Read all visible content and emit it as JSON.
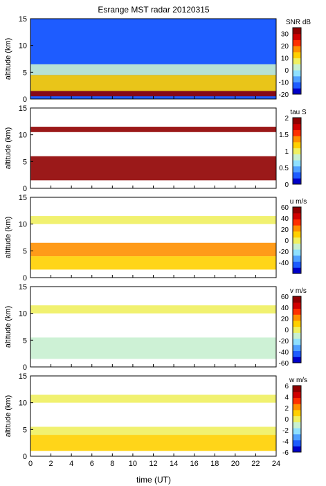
{
  "chart_data": {
    "type": "heatmap",
    "title": "Esrange MST radar 20120315",
    "xlabel": "time (UT)",
    "xlim": [
      0,
      24
    ],
    "xticks": [
      0,
      2,
      4,
      6,
      8,
      10,
      12,
      14,
      16,
      18,
      20,
      22,
      24
    ],
    "grid": false,
    "panels": [
      {
        "ylabel": "altitude (km)",
        "ylim": [
          0,
          15
        ],
        "yticks": [
          0,
          5,
          10,
          15
        ],
        "colorbar": {
          "label": "SNR dB",
          "range": [
            -20,
            35
          ],
          "ticks": [
            -20,
            -10,
            0,
            10,
            20,
            30
          ]
        },
        "bands": [
          {
            "alt_min": 0.5,
            "alt_max": 1.5,
            "value": 30
          },
          {
            "alt_min": 1.5,
            "alt_max": 4.5,
            "value": 12
          },
          {
            "alt_min": 4.5,
            "alt_max": 6.5,
            "value": 0
          },
          {
            "alt_min": 6.5,
            "alt_max": 15,
            "value": -12
          }
        ]
      },
      {
        "ylabel": "altitude (km)",
        "ylim": [
          0,
          15
        ],
        "yticks": [
          0,
          5,
          10,
          15
        ],
        "colorbar": {
          "label": "tau S",
          "range": [
            0,
            2
          ],
          "ticks": [
            0,
            0.5,
            1,
            1.5,
            2
          ]
        },
        "bands": [
          {
            "alt_min": 1.5,
            "alt_max": 6,
            "value": 1.95
          },
          {
            "alt_min": 10.5,
            "alt_max": 11.5,
            "value": 1.9
          }
        ]
      },
      {
        "ylabel": "altitude (km)",
        "ylim": [
          0,
          15
        ],
        "yticks": [
          0,
          5,
          10,
          15
        ],
        "colorbar": {
          "label": "u m/s",
          "range": [
            -60,
            60
          ],
          "ticks": [
            -40,
            -20,
            0,
            20,
            40,
            60
          ]
        },
        "bands": [
          {
            "alt_min": 1.5,
            "alt_max": 4,
            "value": 10
          },
          {
            "alt_min": 4,
            "alt_max": 6.5,
            "value": 20
          },
          {
            "alt_min": 10,
            "alt_max": 11.5,
            "value": 5
          }
        ]
      },
      {
        "ylabel": "altitude (km)",
        "ylim": [
          0,
          15
        ],
        "yticks": [
          0,
          5,
          10,
          15
        ],
        "colorbar": {
          "label": "v m/s",
          "range": [
            -60,
            60
          ],
          "ticks": [
            -60,
            -40,
            -20,
            0,
            20,
            40,
            60
          ]
        },
        "bands": [
          {
            "alt_min": 1.5,
            "alt_max": 5.5,
            "value": -8
          },
          {
            "alt_min": 10,
            "alt_max": 11.5,
            "value": -5
          }
        ]
      },
      {
        "ylabel": "altitude (km)",
        "ylim": [
          0,
          15
        ],
        "yticks": [
          0,
          5,
          10,
          15
        ],
        "colorbar": {
          "label": "w m/s",
          "range": [
            -6,
            6
          ],
          "ticks": [
            -6,
            -4,
            -2,
            0,
            2,
            4,
            6
          ]
        },
        "bands": [
          {
            "alt_min": 1,
            "alt_max": 4,
            "value": 1
          },
          {
            "alt_min": 4,
            "alt_max": 5.5,
            "value": 0.5
          },
          {
            "alt_min": 10,
            "alt_max": 11.5,
            "value": 0.3
          }
        ]
      }
    ]
  },
  "colors": {
    "colormap": [
      "#0000c8",
      "#1e5cff",
      "#4fa0ff",
      "#8fe0ff",
      "#c8f0d0",
      "#f0f060",
      "#ffd000",
      "#ff9000",
      "#ff3000",
      "#d00000",
      "#900000"
    ],
    "frame": "#000000",
    "background": "#ffffff"
  }
}
